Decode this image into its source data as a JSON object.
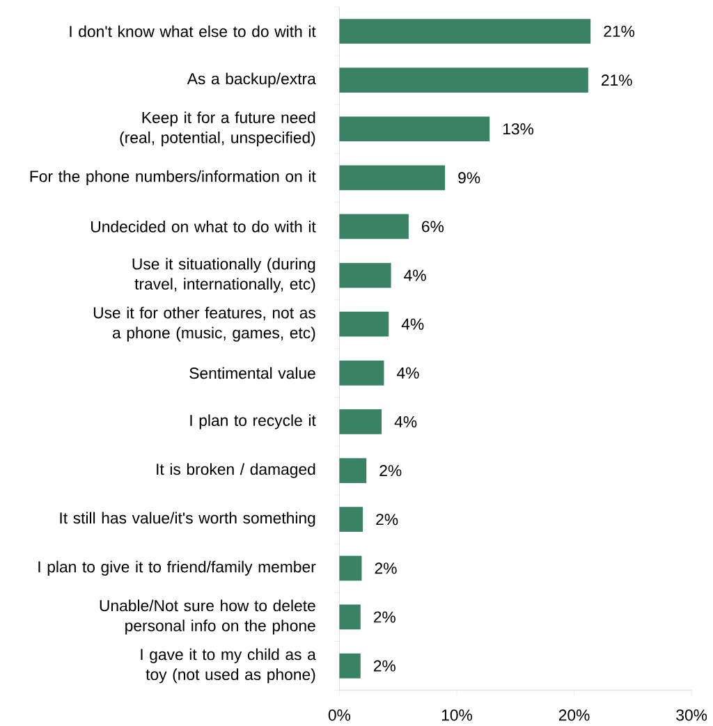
{
  "chart_data": {
    "type": "bar",
    "orientation": "horizontal",
    "color": "#3a8264",
    "categories": [
      "I don't know what else to do with it",
      "As a backup/extra",
      "Keep it for a future need (real, potential, unspecified)",
      "For the phone numbers/information on it",
      "Undecided on what to do with it",
      "Use it situationally (during travel, internationally, etc)",
      "Use it for other features, not as a phone (music, games, etc)",
      "Sentimental value",
      "I plan to recycle it",
      "It is broken / damaged",
      "It still has value/it's worth something",
      "I plan to give it to friend/family member",
      "Unable/Not sure how to delete personal info on the phone",
      "I gave it to my child as a toy (not used as phone)"
    ],
    "values": [
      21.4,
      21.2,
      12.8,
      9.0,
      5.9,
      4.4,
      4.2,
      3.8,
      3.6,
      2.3,
      2.0,
      1.9,
      1.8,
      1.8
    ],
    "value_labels": [
      "21%",
      "21%",
      "13%",
      "9%",
      "6%",
      "4%",
      "4%",
      "4%",
      "4%",
      "2%",
      "2%",
      "2%",
      "2%",
      "2%"
    ],
    "xlim": [
      0,
      30
    ],
    "xticks": [
      {
        "value": 0,
        "label": "0%"
      },
      {
        "value": 10,
        "label": "10%"
      },
      {
        "value": 20,
        "label": "20%"
      },
      {
        "value": 30,
        "label": "30%"
      }
    ]
  }
}
